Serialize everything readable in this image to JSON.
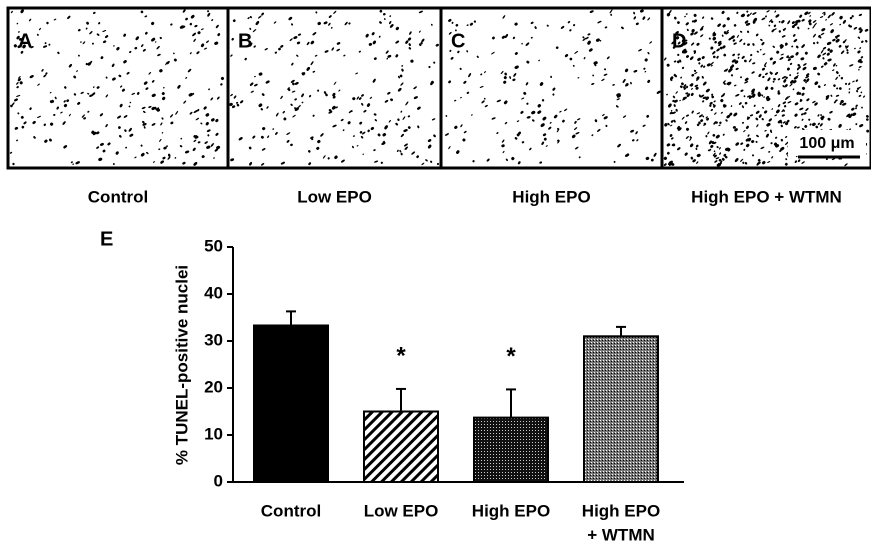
{
  "panels": [
    {
      "label": "A",
      "caption": "Control"
    },
    {
      "label": "B",
      "caption": "Low EPO"
    },
    {
      "label": "C",
      "caption": "High EPO"
    },
    {
      "label": "D",
      "caption": "High EPO + WTMN"
    }
  ],
  "scale_bar": "100 μm",
  "chart_data": {
    "type": "bar",
    "panel_label": "E",
    "ylabel": "% TUNEL-positive nuclei",
    "categories": [
      [
        "Control"
      ],
      [
        "Low EPO"
      ],
      [
        "High EPO"
      ],
      [
        "High EPO",
        "+ WTMN"
      ]
    ],
    "values": [
      33.3,
      15,
      13.7,
      31
    ],
    "errors": [
      3,
      4.8,
      6,
      2
    ],
    "significance": [
      null,
      "*",
      "*",
      null
    ],
    "ylim": [
      0,
      50
    ],
    "yticks": [
      0,
      10,
      20,
      30,
      40,
      50
    ],
    "color": "#000000"
  }
}
